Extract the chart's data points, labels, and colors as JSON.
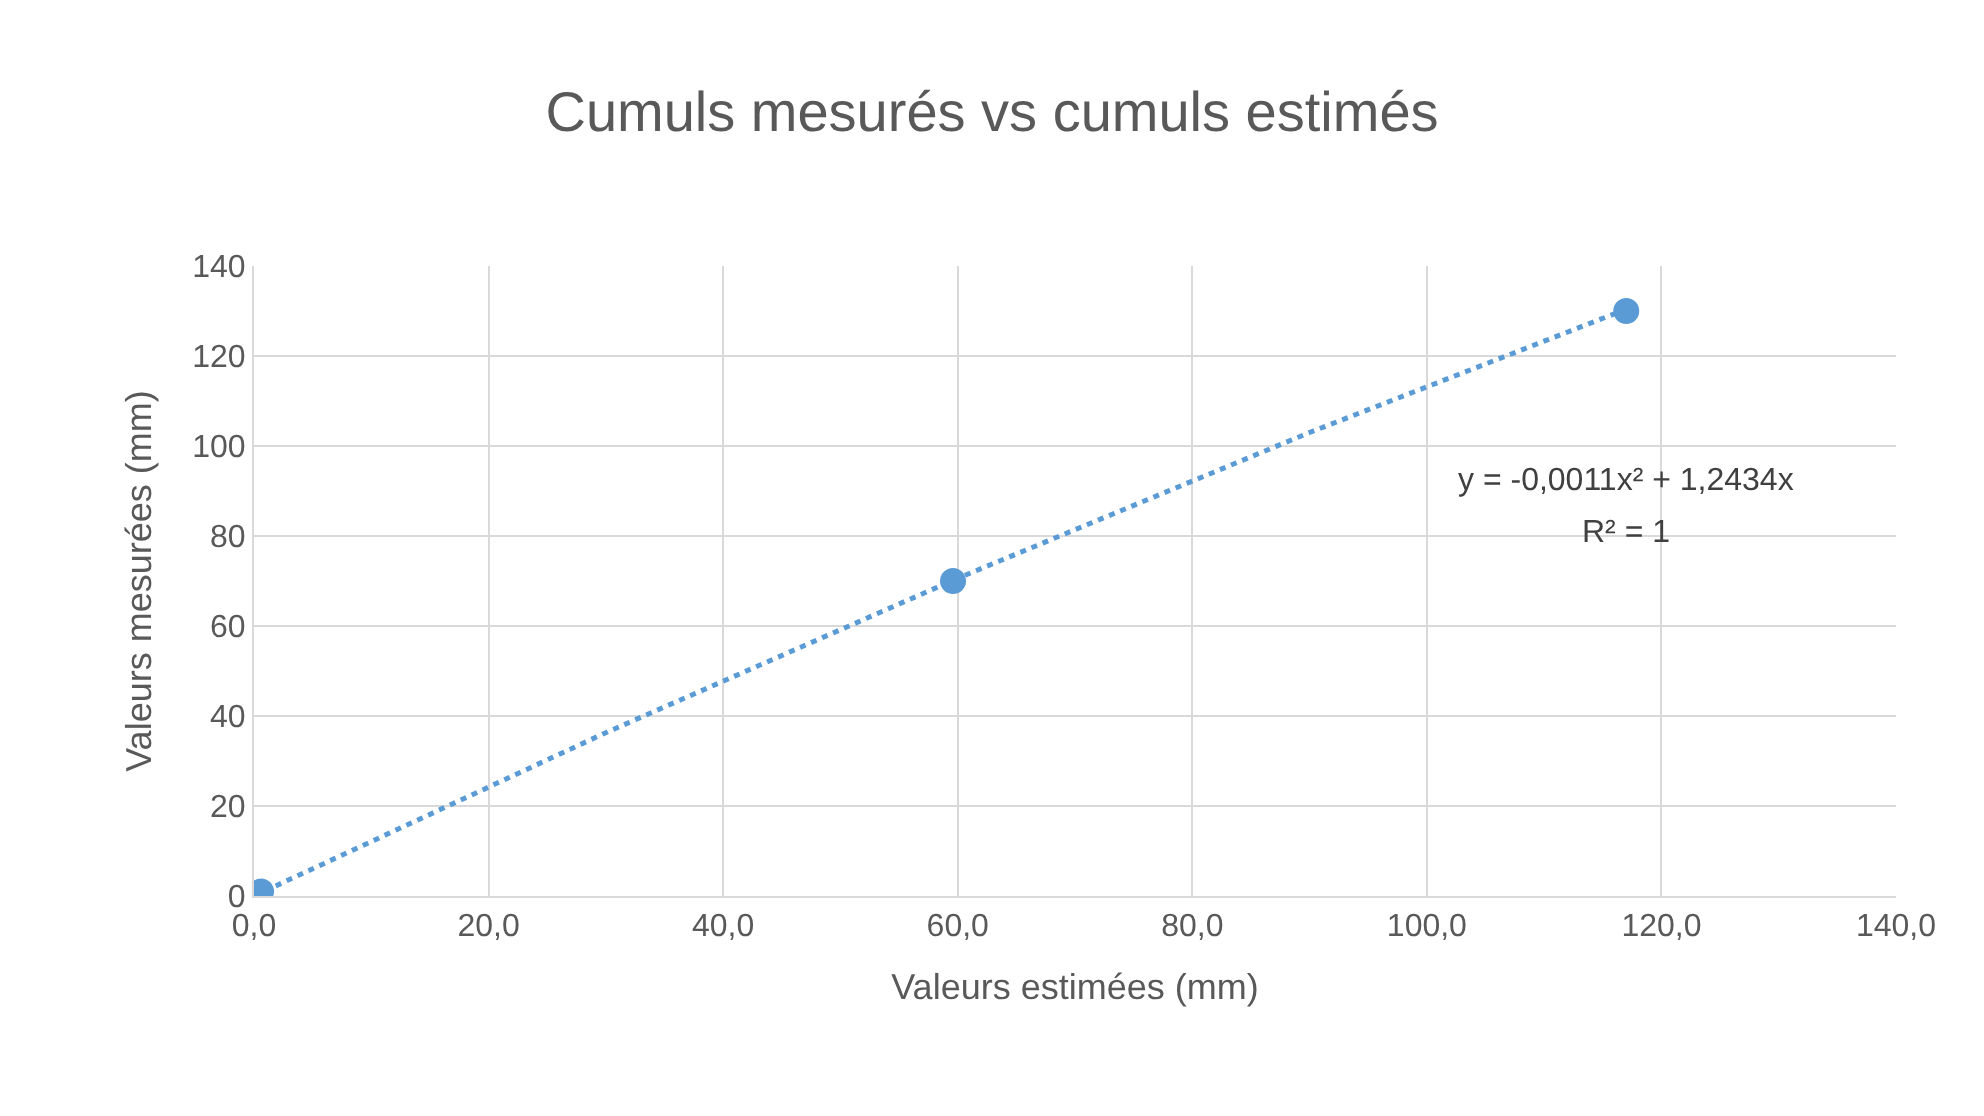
{
  "chart_data": {
    "type": "scatter",
    "title": "Cumuls mesurés vs cumuls estimés",
    "xlabel": "Valeurs estimées (mm)",
    "ylabel": "Valeurs mesurées (mm)",
    "series": [
      {
        "color": "#5b9bd5",
        "marker": "circle",
        "x": [
          0.6,
          59.6,
          117
        ],
        "values": [
          1,
          70,
          130
        ]
      },
      {
        "type": "line",
        "color": "#5b9bd5",
        "marker": "none",
        "line_style": "dotted",
        "x": [
          0,
          30,
          60,
          90,
          117
        ],
        "values": [
          0,
          36.3,
          70.6,
          103,
          130.4
        ]
      }
    ],
    "annotations": [
      "y = -0,0011x² + 1,2434x",
      "R² = 1"
    ],
    "xlim": [
      0,
      140
    ],
    "xticks": [
      {
        "value": 0,
        "label": "0,0"
      },
      {
        "value": 20,
        "label": "20,0"
      },
      {
        "value": 40,
        "label": "40,0"
      },
      {
        "value": 60,
        "label": "60,0"
      },
      {
        "value": 80,
        "label": "80,0"
      },
      {
        "value": 100,
        "label": "100,0"
      },
      {
        "value": 120,
        "label": "120,0"
      },
      {
        "value": 140,
        "label": "140,0"
      }
    ],
    "ylim": [
      0,
      140
    ],
    "yticks": [
      0,
      20,
      40,
      60,
      80,
      100,
      120,
      140
    ],
    "grid": true,
    "legend": false
  }
}
